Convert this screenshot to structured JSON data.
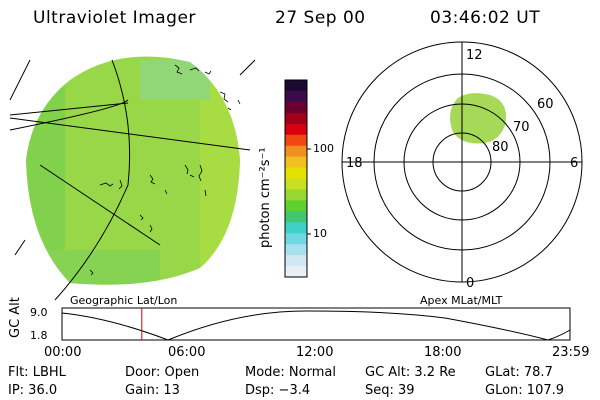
{
  "header": {
    "title": "Ultraviolet Imager",
    "date": "27 Sep 00",
    "time": "03:46:02 UT"
  },
  "colorbar": {
    "label": "photon cm⁻²s⁻¹",
    "ticks": [
      "100",
      "10"
    ],
    "colors": [
      "#1a0a33",
      "#3a0a4a",
      "#6a0030",
      "#a00018",
      "#d80010",
      "#f04810",
      "#f09020",
      "#f0c020",
      "#e6e000",
      "#c8e020",
      "#98d830",
      "#60d030",
      "#40c870",
      "#40d0c8",
      "#70d8e0",
      "#a8e0ee",
      "#d0e8f2",
      "#e8eef4"
    ]
  },
  "geographic_panel": {
    "label": "Geographic Lat/Lon",
    "fill_color": "#98d848"
  },
  "polar_panel": {
    "label": "Apex MLat/MLT",
    "mlt_labels": {
      "top": "12",
      "bottom": "0",
      "left": "18",
      "right": "6"
    },
    "lat_labels": [
      "60",
      "70",
      "80"
    ],
    "blob_color": "#a6d957"
  },
  "timeline": {
    "axis_label": "GC Alt",
    "y_ticks": [
      "9.0",
      "1.8"
    ],
    "x_ticks": [
      "00:00",
      "06:00",
      "12:00",
      "18:00",
      "23:59"
    ],
    "current_time_hours": 3.77,
    "marker_color": "#cc0000"
  },
  "info": {
    "flt": "Flt: LBHL",
    "door": "Door: Open",
    "mode": "Mode: Normal",
    "gc_alt": "GC Alt: 3.2 Re",
    "glat": "GLat: 78.7",
    "ip": "IP: 36.0",
    "gain": "Gain: 13",
    "dsp": "Dsp:  −3.4",
    "seq": "Seq: 39",
    "glon": "GLon: 107.9"
  }
}
